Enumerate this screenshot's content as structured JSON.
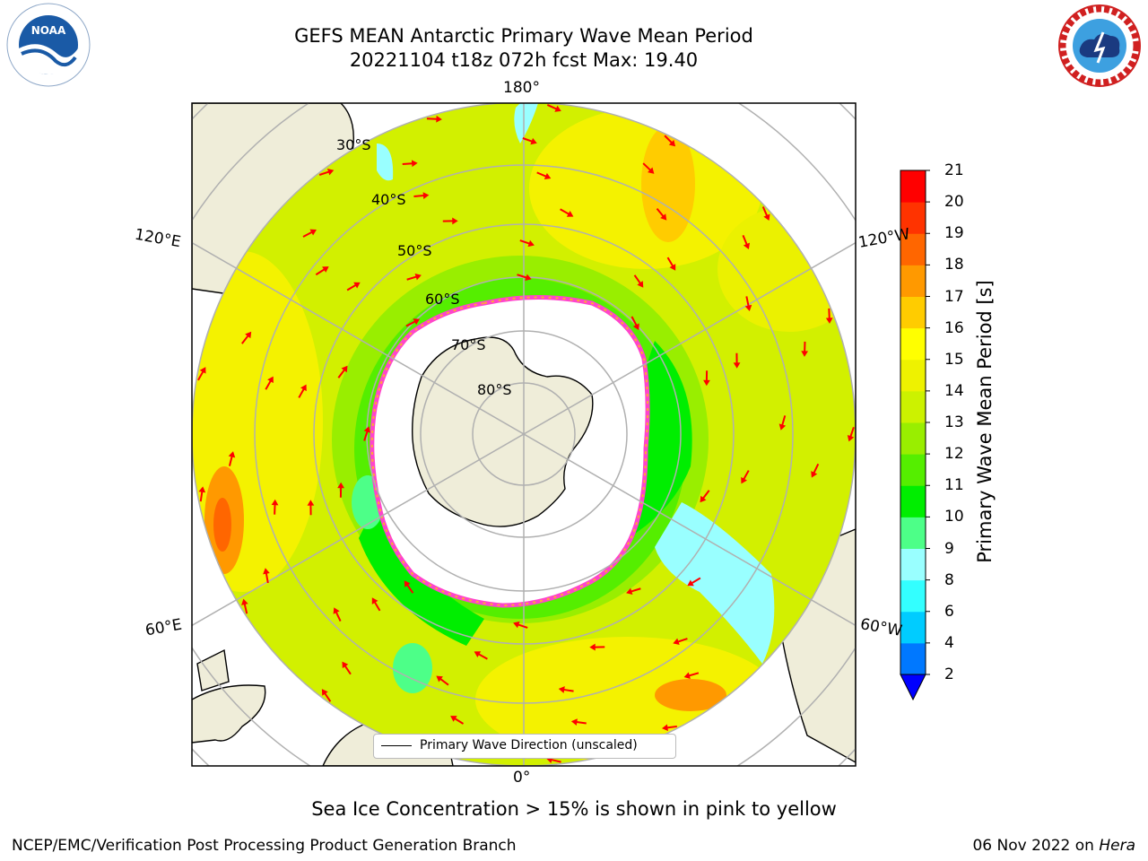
{
  "title": {
    "line1": "GEFS MEAN Antarctic Primary Wave Mean Period",
    "line2": "20221104 t18z 072h fcst   Max: 19.40"
  },
  "map": {
    "projection": "south-polar-stereographic",
    "lon_labels": {
      "top": "180°",
      "bottom": "0°",
      "left_upper": "120°E",
      "left_lower": "60°E",
      "right_upper": "120°W",
      "right_lower": "60°W"
    },
    "lat_labels": [
      "30°S",
      "40°S",
      "50°S",
      "60°S",
      "70°S",
      "80°S"
    ],
    "legend_label": "Primary Wave Direction (unscaled)",
    "arrow_color": "#ff0000",
    "land_color": "#efedd9",
    "ocean_fill_dominant": "#d2f000"
  },
  "colorbar": {
    "label": "Primary Wave Mean Period [s]",
    "ticks": [
      "2",
      "4",
      "6",
      "8",
      "9",
      "10",
      "11",
      "12",
      "13",
      "14",
      "15",
      "16",
      "17",
      "18",
      "19",
      "20",
      "21"
    ],
    "colors": [
      "#0078ff",
      "#00ccff",
      "#33ffff",
      "#99ffff",
      "#4dff88",
      "#00ee00",
      "#55ee00",
      "#99ee00",
      "#ccf200",
      "#eef200",
      "#ffff00",
      "#ffcc00",
      "#ff9900",
      "#ff6600",
      "#ff3300",
      "#ff0000"
    ],
    "under_color": "#0000ff"
  },
  "footnote": "Sea Ice Concentration > 15% is shown in pink to yellow",
  "credits": {
    "left": "NCEP/EMC/Verification Post Processing Product Generation Branch",
    "right_date": "06 Nov 2022 on ",
    "right_machine": "Hera"
  },
  "logos": {
    "noaa_text": "NOAA",
    "nws_text": "NATIONAL WEATHER SERVICE"
  }
}
